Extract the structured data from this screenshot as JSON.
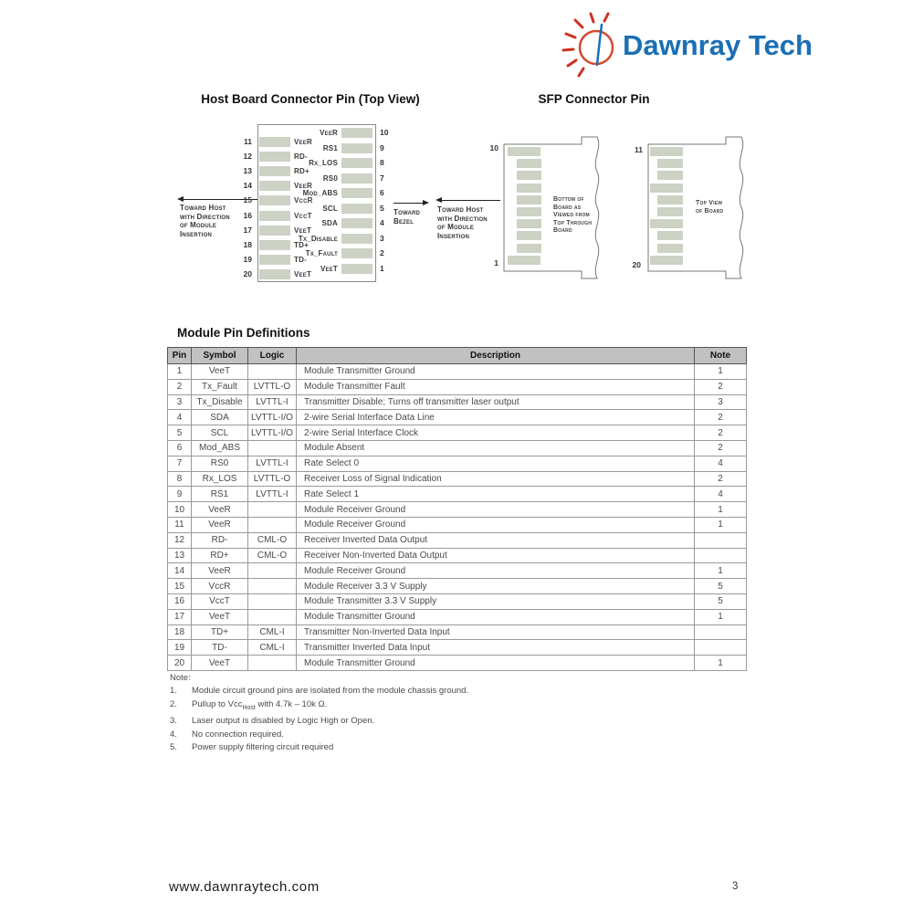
{
  "logo": {
    "brand": "Dawnray Tech",
    "brand_color": "#1b6fb5",
    "sun_color": "#d64a2f",
    "ray_color": "#cd3222"
  },
  "diagrams": {
    "host_title": "Host Board Connector Pin (Top View)",
    "sfp_title": "SFP Connector Pin",
    "pad_color": "#ccd2c4",
    "host_left_pins": [
      {
        "num": "11",
        "label": "VeeR"
      },
      {
        "num": "12",
        "label": "RD-"
      },
      {
        "num": "13",
        "label": "RD+"
      },
      {
        "num": "14",
        "label": "VeeR"
      },
      {
        "num": "15",
        "label": "VccR"
      },
      {
        "num": "16",
        "label": "VccT"
      },
      {
        "num": "17",
        "label": "VeeT"
      },
      {
        "num": "18",
        "label": "TD+"
      },
      {
        "num": "19",
        "label": "TD-"
      },
      {
        "num": "20",
        "label": "VeeT"
      }
    ],
    "host_right_pins": [
      {
        "num": "10",
        "label": "VeeR"
      },
      {
        "num": "9",
        "label": "RS1"
      },
      {
        "num": "8",
        "label": "Rx_LOS"
      },
      {
        "num": "7",
        "label": "RS0"
      },
      {
        "num": "6",
        "label": "Mod_ABS"
      },
      {
        "num": "5",
        "label": "SCL"
      },
      {
        "num": "4",
        "label": "SDA"
      },
      {
        "num": "3",
        "label": "Tx_Disable"
      },
      {
        "num": "2",
        "label": "Tx_Fault"
      },
      {
        "num": "1",
        "label": "VeeT"
      }
    ],
    "toward_host_left": [
      "Toward Host",
      "with Direction",
      "of Module",
      "Insertion"
    ],
    "toward_bezel": [
      "Toward",
      "Bezel"
    ],
    "toward_host_right": [
      "Toward Host",
      "with Direction",
      "of Module",
      "Insertion"
    ],
    "sfp_left_board": {
      "top_pin": "10",
      "bottom_pin": "1",
      "caption": [
        "Bottom of",
        "Board as",
        "Viewed from",
        "Top Through",
        "Board"
      ]
    },
    "sfp_right_board": {
      "top_pin": "11",
      "bottom_pin": "20",
      "caption": [
        "Top View",
        "of Board"
      ]
    }
  },
  "table": {
    "title": "Module Pin Definitions",
    "headers": [
      "Pin",
      "Symbol",
      "Logic",
      "Description",
      "Note"
    ],
    "rows": [
      [
        "1",
        "VeeT",
        "",
        "Module Transmitter Ground",
        "1"
      ],
      [
        "2",
        "Tx_Fault",
        "LVTTL-O",
        "Module Transmitter Fault",
        "2"
      ],
      [
        "3",
        "Tx_Disable",
        "LVTTL-I",
        "Transmitter Disable; Turns off transmitter laser output",
        "3"
      ],
      [
        "4",
        "SDA",
        "LVTTL-I/O",
        "2-wire Serial Interface Data Line",
        "2"
      ],
      [
        "5",
        "SCL",
        "LVTTL-I/O",
        "2-wire Serial Interface Clock",
        "2"
      ],
      [
        "6",
        "Mod_ABS",
        "",
        "Module Absent",
        "2"
      ],
      [
        "7",
        "RS0",
        "LVTTL-I",
        "Rate Select 0",
        "4"
      ],
      [
        "8",
        "Rx_LOS",
        "LVTTL-O",
        "Receiver Loss of Signal Indication",
        "2"
      ],
      [
        "9",
        "RS1",
        "LVTTL-I",
        "Rate Select 1",
        "4"
      ],
      [
        "10",
        "VeeR",
        "",
        "Module Receiver Ground",
        "1"
      ],
      [
        "11",
        "VeeR",
        "",
        "Module Receiver Ground",
        "1"
      ],
      [
        "12",
        "RD-",
        "CML-O",
        "Receiver Inverted Data Output",
        ""
      ],
      [
        "13",
        "RD+",
        "CML-O",
        "Receiver Non-Inverted Data Output",
        ""
      ],
      [
        "14",
        "VeeR",
        "",
        "Module Receiver Ground",
        "1"
      ],
      [
        "15",
        "VccR",
        "",
        "Module Receiver 3.3 V Supply",
        "5"
      ],
      [
        "16",
        "VccT",
        "",
        "Module Transmitter 3.3 V Supply",
        "5"
      ],
      [
        "17",
        "VeeT",
        "",
        "Module Transmitter Ground",
        "1"
      ],
      [
        "18",
        "TD+",
        "CML-I",
        "Transmitter Non-Inverted Data Input",
        ""
      ],
      [
        "19",
        "TD-",
        "CML-I",
        "Transmitter Inverted Data Input",
        ""
      ],
      [
        "20",
        "VeeT",
        "",
        "Module Transmitter Ground",
        "1"
      ]
    ]
  },
  "notes": {
    "label": "Note:",
    "items": [
      {
        "num": "1.",
        "text": "Module circuit ground pins are isolated from the module chassis ground."
      },
      {
        "num": "2.",
        "pre": "Pullup to Vcc",
        "sub": "Host",
        "post": " with 4.7k – 10k Ω."
      },
      {
        "num": "3.",
        "text": "Laser output is disabled by Logic High or Open."
      },
      {
        "num": "4.",
        "text": "No connection required."
      },
      {
        "num": "5.",
        "text": "Power supply filtering circuit required"
      }
    ]
  },
  "footer": {
    "url": "www.dawnraytech.com",
    "page_number": "3"
  }
}
